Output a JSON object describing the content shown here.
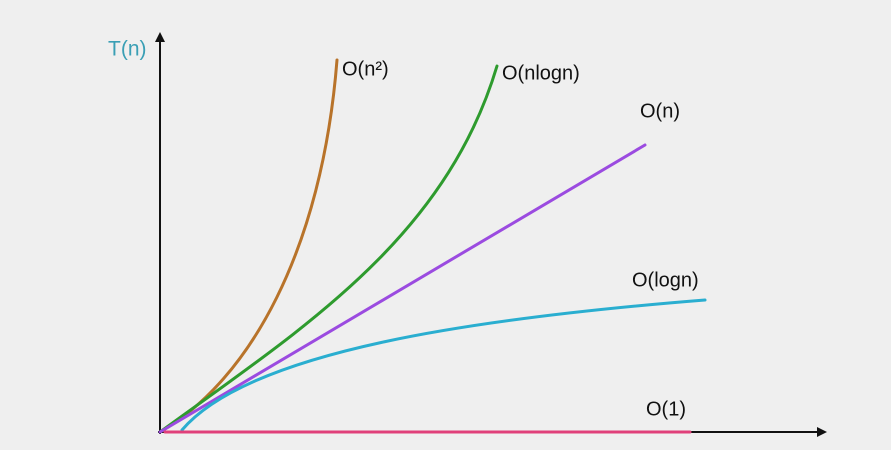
{
  "axis": {
    "y_label": "T(n)"
  },
  "curves": [
    {
      "label": "O(n²)"
    },
    {
      "label": "O(nlogn)"
    },
    {
      "label": "O(n)"
    },
    {
      "label": "O(logn)"
    },
    {
      "label": "O(1)"
    }
  ]
}
